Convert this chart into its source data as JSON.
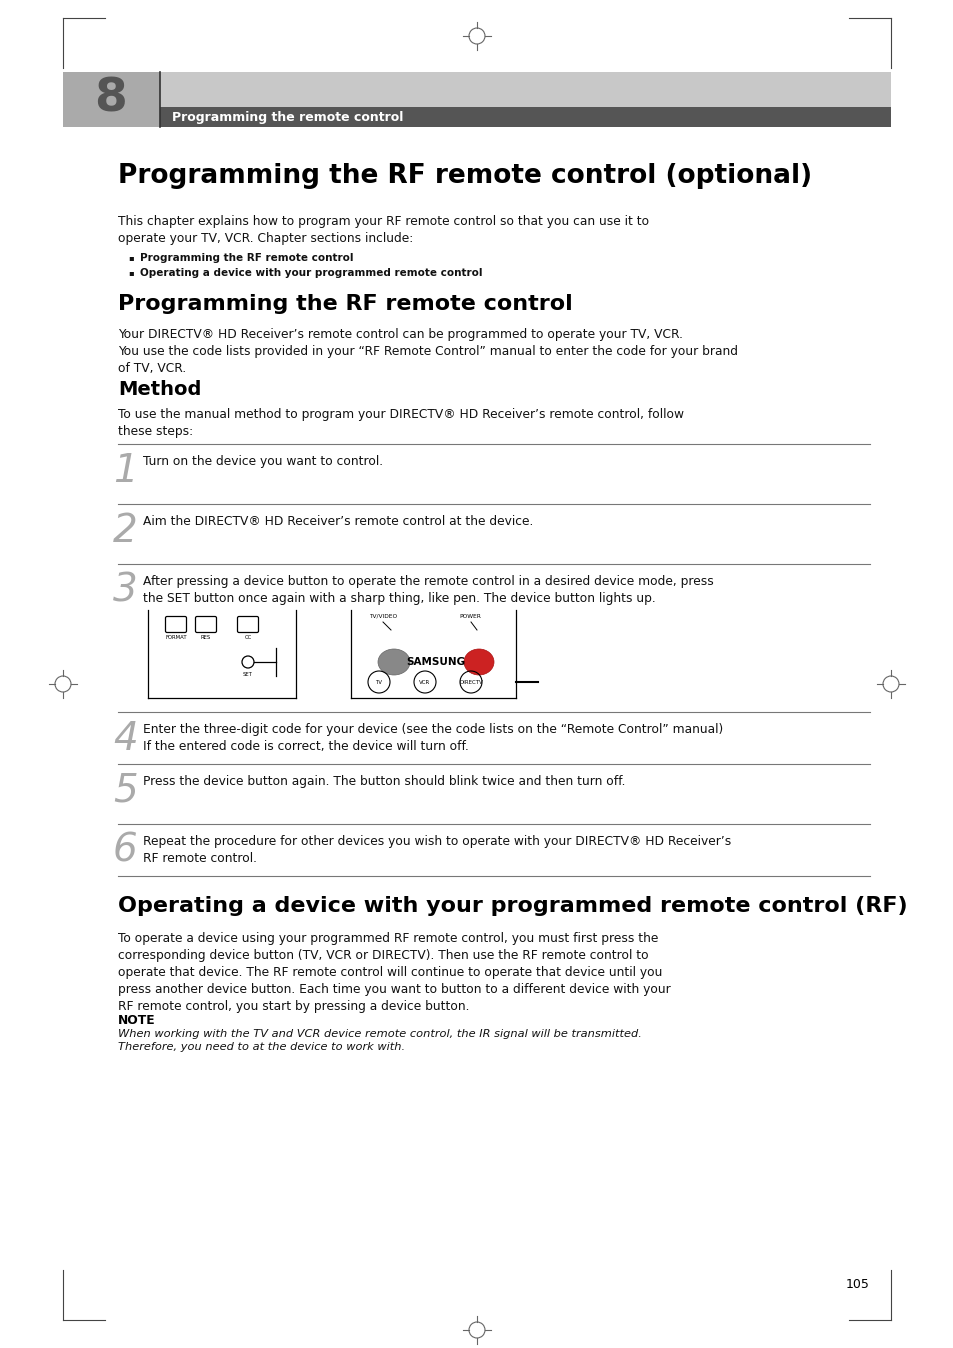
{
  "page_bg": "#ffffff",
  "header_number": "8",
  "header_subtitle": "Programming the remote control",
  "chapter_title": "Programming the RF remote control (optional)",
  "intro_text": "This chapter explains how to program your RF remote control so that you can use it to\noperate your TV, VCR. Chapter sections include:",
  "bullet1": "Programming the RF remote control",
  "bullet2": "Operating a device with your programmed remote control",
  "section1_title": "Programming the RF remote control",
  "section1_body": "Your DIRECTV® HD Receiver’s remote control can be programmed to operate your TV, VCR.\nYou use the code lists provided in your “RF Remote Control” manual to enter the code for your brand\nof TV, VCR.",
  "method_title": "Method",
  "method_intro": "To use the manual method to program your DIRECTV® HD Receiver’s remote control, follow\nthese steps:",
  "step1": "Turn on the device you want to control.",
  "step2": "Aim the DIRECTV® HD Receiver’s remote control at the device.",
  "step3_text": "After pressing a device button to operate the remote control in a desired device mode, press\nthe SET button once again with a sharp thing, like pen. The device button lights up.",
  "step4_text": "Enter the three-digit code for your device (see the code lists on the “Remote Control” manual)\nIf the entered code is correct, the device will turn off.",
  "step5_text": "Press the device button again. The button should blink twice and then turn off.",
  "step6_text": "Repeat the procedure for other devices you wish to operate with your DIRECTV® HD Receiver’s\nRF remote control.",
  "section2_title": "Operating a device with your programmed remote control (RF)",
  "section2_body": "To operate a device using your programmed RF remote control, you must first press the\ncorresponding device button (TV, VCR or DIRECTV). Then use the RF remote control to\noperate that device. The RF remote control will continue to operate that device until you\npress another device button. Each time you want to button to a different device with your\nRF remote control, you start by pressing a device button.",
  "note_title": "NOTE",
  "note_body": "When working with the TV and VCR device remote control, the IR signal will be transmitted.\nTherefore, you need to at the device to work with.",
  "page_number": "105"
}
